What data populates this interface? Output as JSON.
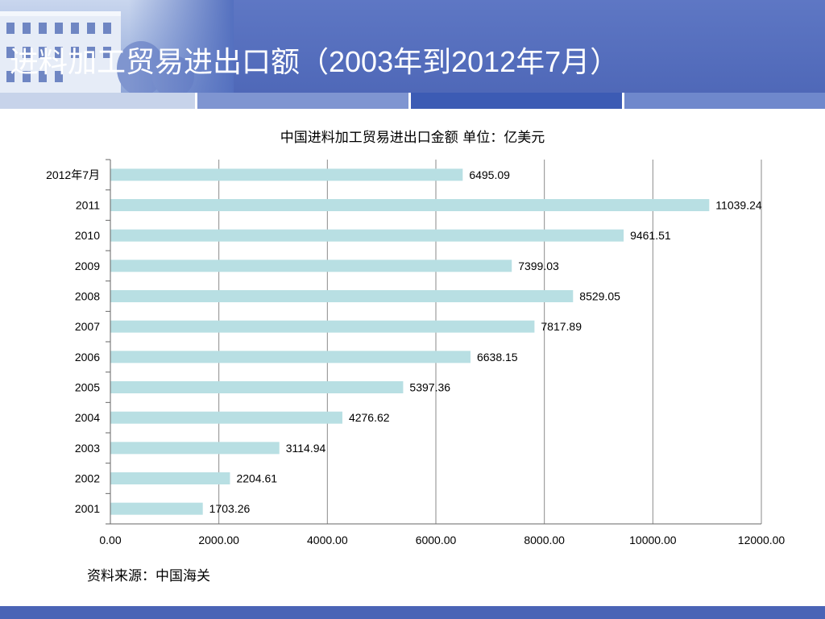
{
  "slide": {
    "title": "进料加工贸易进出口额（2003年到2012年7月）",
    "source": "资料来源：中国海关"
  },
  "colors": {
    "header": "#5470bf",
    "bar": "#b8dfe3",
    "gridline": "#8a8a8a",
    "band_light": "#c7d3ea",
    "band_dark": "#3c5bb4"
  },
  "chart_data": {
    "type": "bar",
    "orientation": "horizontal",
    "title": "中国进料加工贸易进出口金额  单位：亿美元",
    "categories": [
      "2012年7月",
      "2011",
      "2010",
      "2009",
      "2008",
      "2007",
      "2006",
      "2005",
      "2004",
      "2003",
      "2002",
      "2001"
    ],
    "values": [
      6495.09,
      11039.24,
      9461.51,
      7399.03,
      8529.05,
      7817.89,
      6638.15,
      5397.36,
      4276.62,
      3114.94,
      2204.61,
      1703.26
    ],
    "data_labels": [
      "6495.09",
      "11039.24",
      "9461.51",
      "7399.03",
      "8529.05",
      "7817.89",
      "6638.15",
      "5397.36",
      "4276.62",
      "3114.94",
      "2204.61",
      "1703.26"
    ],
    "x_ticks": [
      0,
      2000,
      4000,
      6000,
      8000,
      10000,
      12000
    ],
    "x_tick_labels": [
      "0.00",
      "2000.00",
      "4000.00",
      "6000.00",
      "8000.00",
      "10000.00",
      "12000.00"
    ],
    "xlim": [
      0,
      12000
    ],
    "xlabel": "",
    "ylabel": "",
    "grid": true,
    "legend": false
  }
}
